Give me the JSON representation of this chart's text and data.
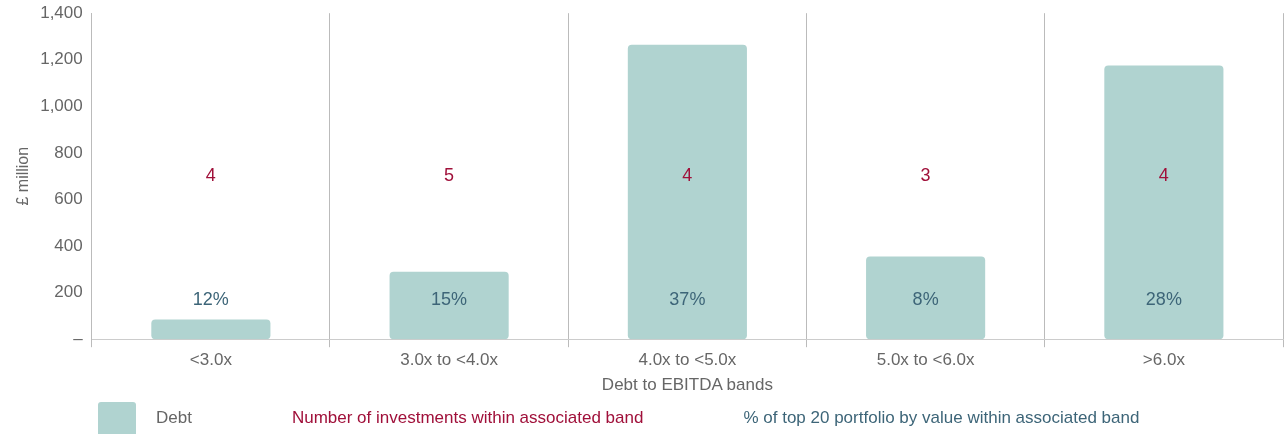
{
  "chart_data": {
    "type": "bar",
    "xlabel": "Debt to EBITDA bands",
    "ylabel": "£ million",
    "categories": [
      "<3.0x",
      "3.0x to <4.0x",
      "4.0x to <5.0x",
      "5.0x to <6.0x",
      ">6.0x"
    ],
    "series": [
      {
        "name": "Debt",
        "color": "#b0d3d0",
        "values": [
          85,
          290,
          1265,
          355,
          1175
        ]
      }
    ],
    "ylim": [
      0,
      1400
    ],
    "yticks": [
      {
        "value": 0,
        "label": "–"
      },
      {
        "value": 200,
        "label": "200"
      },
      {
        "value": 400,
        "label": "400"
      },
      {
        "value": 600,
        "label": "600"
      },
      {
        "value": 800,
        "label": "800"
      },
      {
        "value": 1000,
        "label": "1,000"
      },
      {
        "value": 1200,
        "label": "1,200"
      },
      {
        "value": 1400,
        "label": "1,400"
      }
    ],
    "grid": "x",
    "legend": "bottom left",
    "annotations": [
      "Number of investments within associated band",
      "% of top 20 portfolio by value within associated band",
      "4",
      "5",
      "4",
      "3",
      "4",
      "12%",
      "15%",
      "37%",
      "8%",
      "28%"
    ]
  }
}
